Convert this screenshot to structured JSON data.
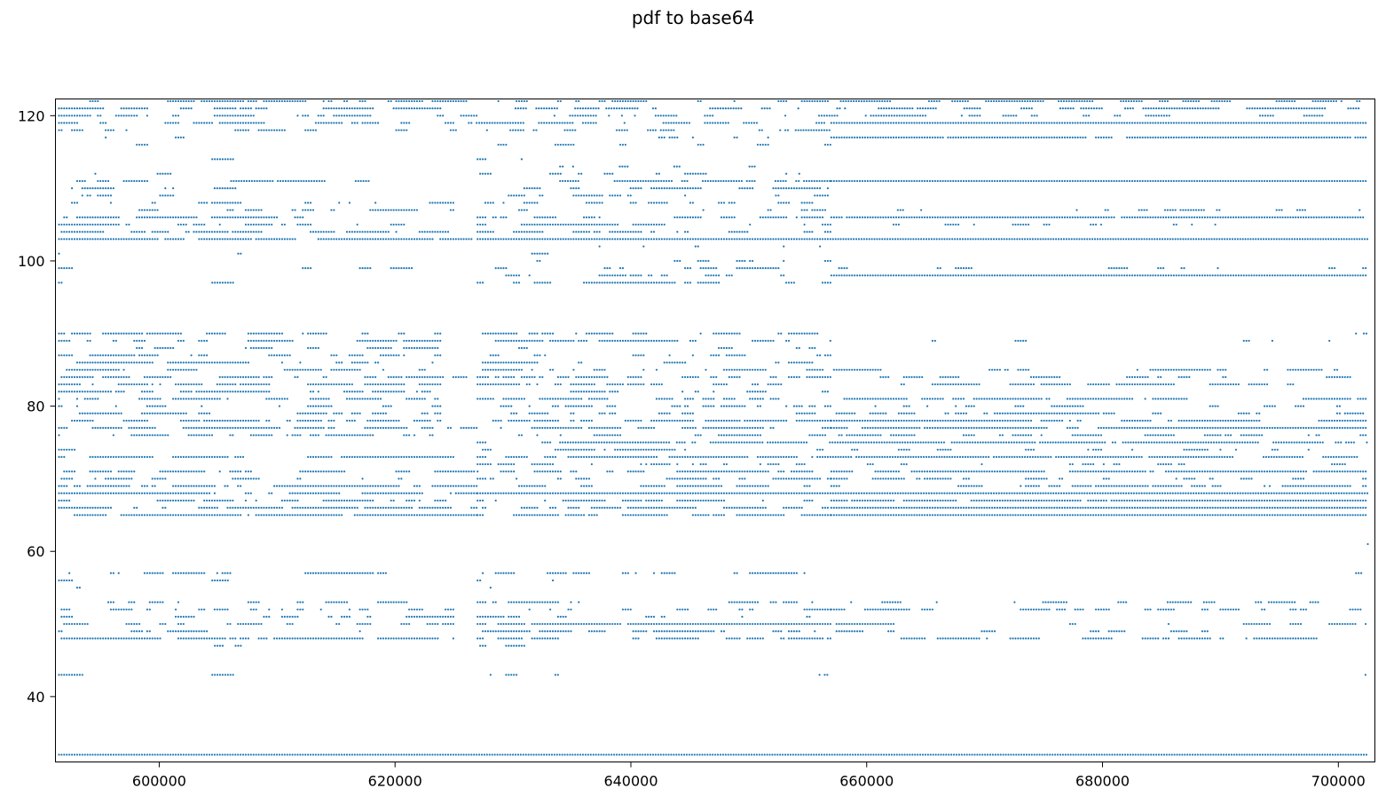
{
  "chart_data": {
    "type": "scatter",
    "title": "pdf to base64",
    "xlabel": "",
    "ylabel": "",
    "xlim": [
      591200,
      703100
    ],
    "ylim": [
      31,
      122.3
    ],
    "xticks": [
      {
        "value": 600000,
        "label": "600000"
      },
      {
        "value": 620000,
        "label": "620000"
      },
      {
        "value": 640000,
        "label": "640000"
      },
      {
        "value": 660000,
        "label": "660000"
      },
      {
        "value": 680000,
        "label": "680000"
      },
      {
        "value": 700000,
        "label": "700000"
      }
    ],
    "yticks": [
      {
        "value": 40,
        "label": "40"
      },
      {
        "value": 60,
        "label": "60"
      },
      {
        "value": 80,
        "label": "80"
      },
      {
        "value": 100,
        "label": "100"
      },
      {
        "value": 120,
        "label": "120"
      }
    ],
    "marker_color": "#1f77b4",
    "grid": false,
    "x_start": 591500,
    "x_end": 702500,
    "series": [
      {
        "y": 32,
        "segments": [
          [
            591500,
            702500,
            1.0
          ]
        ]
      },
      {
        "y": 122,
        "segments": [
          [
            591500,
            627000,
            0.5
          ],
          [
            627000,
            702500,
            0.45
          ]
        ]
      },
      {
        "y": 121,
        "segments": [
          [
            591500,
            702500,
            0.55
          ]
        ]
      },
      {
        "y": 120,
        "segments": [
          [
            591500,
            702500,
            0.45
          ]
        ]
      },
      {
        "y": 119,
        "segments": [
          [
            591500,
            657000,
            0.5
          ],
          [
            657000,
            702500,
            1.0
          ]
        ]
      },
      {
        "y": 118,
        "segments": [
          [
            591500,
            657000,
            0.3
          ]
        ]
      },
      {
        "y": 117,
        "segments": [
          [
            591500,
            605000,
            0.15
          ],
          [
            627000,
            657000,
            0.2
          ],
          [
            657000,
            702500,
            0.9
          ]
        ]
      },
      {
        "y": 116,
        "segments": [
          [
            591500,
            605000,
            0.1
          ],
          [
            627000,
            657000,
            0.15
          ]
        ]
      },
      {
        "y": 114,
        "segments": [
          [
            604500,
            607000,
            0.3
          ],
          [
            627000,
            634000,
            0.2
          ]
        ]
      },
      {
        "y": 113,
        "segments": [
          [
            634000,
            657000,
            0.25
          ]
        ]
      },
      {
        "y": 112,
        "segments": [
          [
            591500,
            607000,
            0.12
          ],
          [
            627000,
            657000,
            0.3
          ]
        ]
      },
      {
        "y": 111,
        "segments": [
          [
            591500,
            599000,
            0.6
          ],
          [
            605000,
            618000,
            0.6
          ],
          [
            634000,
            657000,
            0.6
          ],
          [
            657000,
            702500,
            0.95
          ]
        ]
      },
      {
        "y": 110,
        "segments": [
          [
            591500,
            607000,
            0.2
          ],
          [
            627000,
            657000,
            0.35
          ]
        ]
      },
      {
        "y": 109,
        "segments": [
          [
            591500,
            603000,
            0.25
          ],
          [
            627000,
            657000,
            0.4
          ]
        ]
      },
      {
        "y": 108,
        "segments": [
          [
            591500,
            625000,
            0.4
          ],
          [
            627000,
            657000,
            0.35
          ]
        ]
      },
      {
        "y": 107,
        "segments": [
          [
            591500,
            625000,
            0.3
          ],
          [
            627000,
            702500,
            0.2
          ]
        ]
      },
      {
        "y": 106,
        "segments": [
          [
            591500,
            625000,
            0.35
          ],
          [
            627000,
            657000,
            0.5
          ],
          [
            657000,
            702500,
            0.9
          ]
        ]
      },
      {
        "y": 105,
        "segments": [
          [
            591500,
            625000,
            0.4
          ],
          [
            627000,
            657000,
            0.4
          ],
          [
            657000,
            702500,
            0.2
          ]
        ]
      },
      {
        "y": 104,
        "segments": [
          [
            591500,
            625000,
            0.5
          ],
          [
            627000,
            657000,
            0.35
          ]
        ]
      },
      {
        "y": 103,
        "segments": [
          [
            591500,
            626500,
            0.9
          ],
          [
            627000,
            702500,
            0.95
          ]
        ]
      },
      {
        "y": 102,
        "segments": [
          [
            627000,
            657000,
            0.15
          ]
        ]
      },
      {
        "y": 101,
        "segments": [
          [
            591500,
            593000,
            0.2
          ],
          [
            604500,
            607000,
            0.3
          ],
          [
            627000,
            634000,
            0.3
          ]
        ]
      },
      {
        "y": 100,
        "segments": [
          [
            591500,
            593500,
            0.15
          ],
          [
            627000,
            657000,
            0.15
          ]
        ]
      },
      {
        "y": 99,
        "segments": [
          [
            591500,
            625000,
            0.12
          ],
          [
            627000,
            657000,
            0.25
          ],
          [
            657000,
            702500,
            0.2
          ]
        ]
      },
      {
        "y": 98,
        "segments": [
          [
            591500,
            593000,
            0.2
          ],
          [
            627000,
            657000,
            0.4
          ],
          [
            657000,
            702500,
            0.95
          ]
        ]
      },
      {
        "y": 97,
        "segments": [
          [
            591500,
            593500,
            0.3
          ],
          [
            604500,
            607000,
            0.3
          ],
          [
            627000,
            657000,
            0.45
          ]
        ]
      },
      {
        "y": 90,
        "segments": [
          [
            591500,
            624000,
            0.5
          ],
          [
            627000,
            657000,
            0.4
          ],
          [
            701500,
            702500,
            0.5
          ]
        ]
      },
      {
        "y": 89,
        "segments": [
          [
            591500,
            624000,
            0.45
          ],
          [
            627000,
            657000,
            0.5
          ],
          [
            657000,
            702500,
            0.12
          ]
        ]
      },
      {
        "y": 88,
        "segments": [
          [
            591500,
            624000,
            0.3
          ],
          [
            627000,
            657000,
            0.3
          ]
        ]
      },
      {
        "y": 87,
        "segments": [
          [
            591500,
            624000,
            0.35
          ],
          [
            627000,
            657000,
            0.4
          ]
        ]
      },
      {
        "y": 86,
        "segments": [
          [
            591500,
            624000,
            0.5
          ],
          [
            627000,
            657000,
            0.35
          ]
        ]
      },
      {
        "y": 85,
        "segments": [
          [
            591500,
            624000,
            0.55
          ],
          [
            627000,
            657000,
            0.4
          ],
          [
            657000,
            702500,
            0.3
          ]
        ]
      },
      {
        "y": 84,
        "segments": [
          [
            591500,
            627000,
            0.6
          ],
          [
            627000,
            657000,
            0.35
          ],
          [
            657000,
            702500,
            0.35
          ]
        ]
      },
      {
        "y": 83,
        "segments": [
          [
            591500,
            624000,
            0.6
          ],
          [
            627000,
            657000,
            0.4
          ],
          [
            657000,
            702500,
            0.4
          ]
        ]
      },
      {
        "y": 82,
        "segments": [
          [
            591500,
            624000,
            0.45
          ],
          [
            627000,
            657000,
            0.3
          ]
        ]
      },
      {
        "y": 81,
        "segments": [
          [
            591500,
            624000,
            0.55
          ],
          [
            627000,
            657000,
            0.45
          ],
          [
            657000,
            702500,
            0.45
          ]
        ]
      },
      {
        "y": 80,
        "segments": [
          [
            591500,
            624000,
            0.3
          ],
          [
            627000,
            657000,
            0.35
          ],
          [
            657000,
            702500,
            0.25
          ]
        ]
      },
      {
        "y": 79,
        "segments": [
          [
            591500,
            624000,
            0.45
          ],
          [
            627000,
            657000,
            0.4
          ],
          [
            657000,
            702500,
            0.5
          ]
        ]
      },
      {
        "y": 78,
        "segments": [
          [
            591500,
            624000,
            0.55
          ],
          [
            627000,
            657000,
            0.5
          ],
          [
            657000,
            702500,
            0.75
          ]
        ]
      },
      {
        "y": 77,
        "segments": [
          [
            591500,
            627000,
            0.7
          ],
          [
            627000,
            657000,
            0.6
          ],
          [
            657000,
            702500,
            0.9
          ]
        ]
      },
      {
        "y": 76,
        "segments": [
          [
            591500,
            624000,
            0.45
          ],
          [
            627000,
            657000,
            0.35
          ],
          [
            657000,
            702500,
            0.2
          ]
        ]
      },
      {
        "y": 75,
        "segments": [
          [
            627000,
            634000,
            0.3
          ],
          [
            634000,
            702500,
            0.85
          ]
        ]
      },
      {
        "y": 74,
        "segments": [
          [
            591500,
            593000,
            0.2
          ],
          [
            627000,
            657000,
            0.4
          ],
          [
            657000,
            702500,
            0.25
          ]
        ]
      },
      {
        "y": 73,
        "segments": [
          [
            591500,
            627000,
            0.8
          ],
          [
            627000,
            702500,
            0.85
          ]
        ]
      },
      {
        "y": 72,
        "segments": [
          [
            591500,
            593000,
            0.2
          ],
          [
            627000,
            657000,
            0.35
          ],
          [
            657000,
            702500,
            0.2
          ]
        ]
      },
      {
        "y": 71,
        "segments": [
          [
            591500,
            627000,
            0.5
          ],
          [
            627000,
            657000,
            0.5
          ],
          [
            657000,
            702500,
            0.9
          ]
        ]
      },
      {
        "y": 70,
        "segments": [
          [
            591500,
            627000,
            0.35
          ],
          [
            627000,
            657000,
            0.3
          ],
          [
            657000,
            702500,
            0.3
          ]
        ]
      },
      {
        "y": 69,
        "segments": [
          [
            591500,
            627000,
            0.7
          ],
          [
            627000,
            657000,
            0.45
          ],
          [
            657000,
            702500,
            0.6
          ]
        ]
      },
      {
        "y": 68,
        "segments": [
          [
            591500,
            627000,
            0.8
          ],
          [
            627000,
            702500,
            0.95
          ]
        ]
      },
      {
        "y": 67,
        "segments": [
          [
            591500,
            627000,
            0.6
          ],
          [
            627000,
            657000,
            0.5
          ],
          [
            657000,
            702500,
            0.9
          ]
        ]
      },
      {
        "y": 66,
        "segments": [
          [
            591500,
            627000,
            0.75
          ],
          [
            627000,
            657000,
            0.55
          ],
          [
            657000,
            702500,
            0.95
          ]
        ]
      },
      {
        "y": 65,
        "segments": [
          [
            591500,
            627000,
            0.85
          ],
          [
            627000,
            657000,
            0.7
          ],
          [
            657000,
            702500,
            1.0
          ]
        ]
      },
      {
        "y": 61,
        "segments": [
          [
            702500,
            702600,
            1.0
          ]
        ]
      },
      {
        "y": 57,
        "segments": [
          [
            591500,
            624000,
            0.45
          ],
          [
            627000,
            657000,
            0.45
          ],
          [
            701500,
            702500,
            0.5
          ]
        ]
      },
      {
        "y": 56,
        "segments": [
          [
            591500,
            593500,
            0.3
          ],
          [
            604500,
            607000,
            0.3
          ],
          [
            627000,
            634000,
            0.3
          ]
        ]
      },
      {
        "y": 55,
        "segments": [
          [
            591500,
            593500,
            0.3
          ],
          [
            604500,
            607000,
            0.3
          ],
          [
            627000,
            632000,
            0.35
          ]
        ]
      },
      {
        "y": 54,
        "segments": [
          [
            627000,
            634000,
            0.35
          ]
        ]
      },
      {
        "y": 53,
        "segments": [
          [
            591500,
            625000,
            0.25
          ],
          [
            627000,
            702500,
            0.3
          ]
        ]
      },
      {
        "y": 52,
        "segments": [
          [
            591500,
            625000,
            0.3
          ],
          [
            627000,
            657000,
            0.35
          ],
          [
            657000,
            702500,
            0.45
          ]
        ]
      },
      {
        "y": 51,
        "segments": [
          [
            591500,
            625000,
            0.25
          ],
          [
            627000,
            657000,
            0.25
          ]
        ]
      },
      {
        "y": 50,
        "segments": [
          [
            591500,
            625000,
            0.35
          ],
          [
            627000,
            657000,
            0.75
          ],
          [
            657000,
            702500,
            0.4
          ]
        ]
      },
      {
        "y": 49,
        "segments": [
          [
            591500,
            625000,
            0.3
          ],
          [
            627000,
            657000,
            0.35
          ],
          [
            657000,
            702500,
            0.25
          ]
        ]
      },
      {
        "y": 48,
        "segments": [
          [
            591500,
            625000,
            0.6
          ],
          [
            627000,
            657000,
            0.4
          ],
          [
            657000,
            702500,
            0.5
          ]
        ]
      },
      {
        "y": 47,
        "segments": [
          [
            604500,
            607000,
            0.3
          ],
          [
            627000,
            631000,
            0.4
          ]
        ]
      },
      {
        "y": 43,
        "segments": [
          [
            591500,
            593500,
            0.25
          ],
          [
            604500,
            607000,
            0.6
          ],
          [
            627000,
            634000,
            0.5
          ],
          [
            656000,
            657000,
            0.5
          ],
          [
            702300,
            702500,
            1.0
          ]
        ]
      }
    ]
  }
}
